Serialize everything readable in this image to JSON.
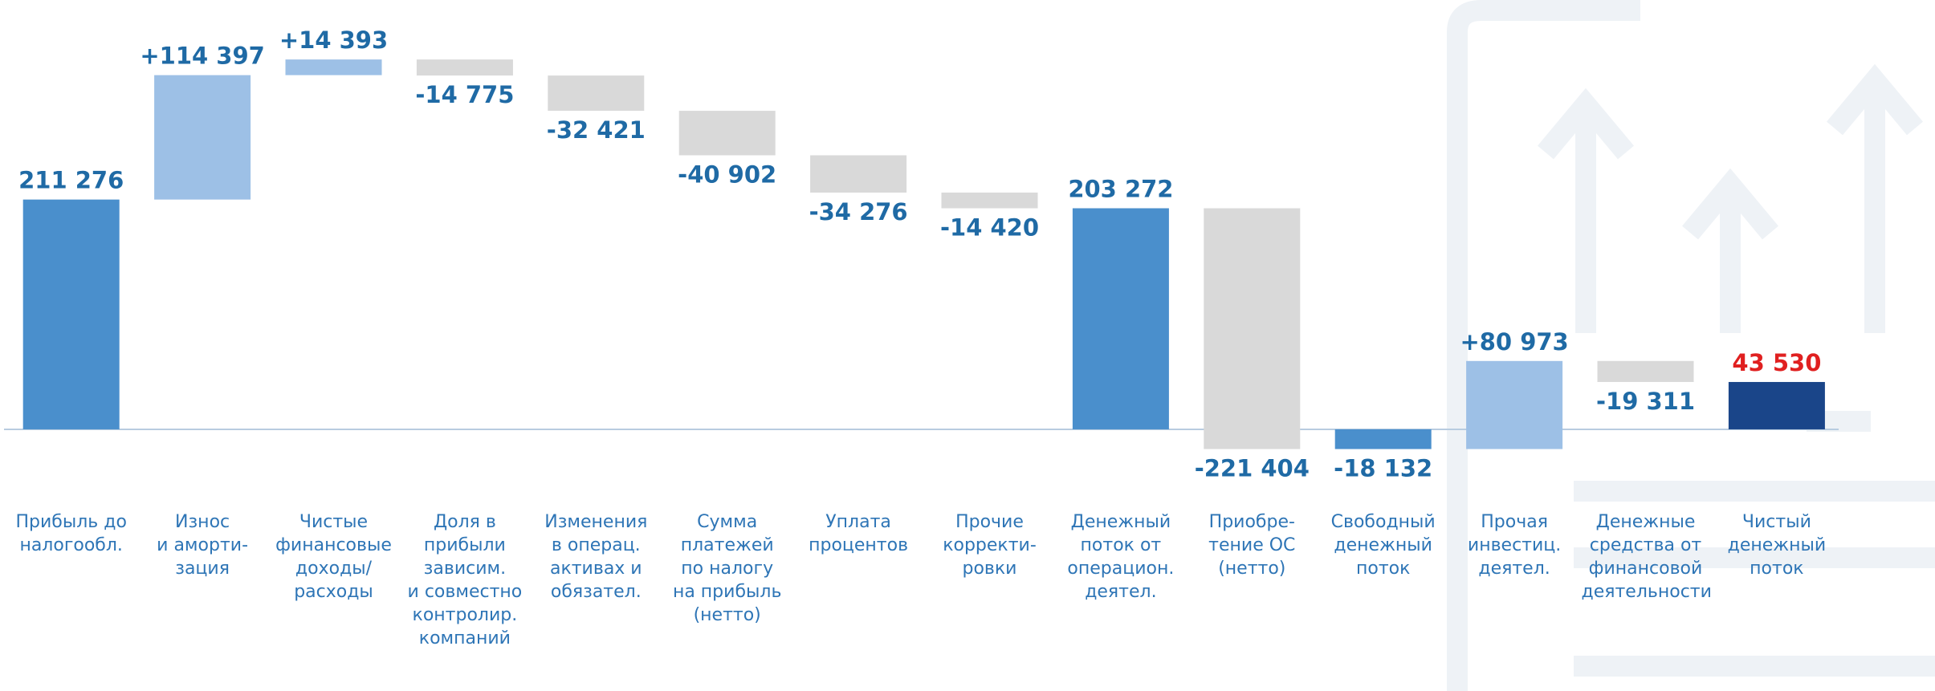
{
  "chart_data": {
    "type": "waterfall",
    "categories": [
      "Прибыль до\nналогообл.",
      "Износ\nи аморти-\nзация",
      "Чистые\nфинансовые\nдоходы/\nрасходы",
      "Доля в\nприбыли\nзависим.\nи совместно\nконтролир.\nкомпаний",
      "Изменения\nв операц.\nактивах и\nобязател.",
      "Сумма\nплатежей\nпо налогу\nна прибыль\n(нетто)",
      "Уплата\nпроцентов",
      "Прочие\nкорректи-\nровки",
      "Денежный\nпоток от\nоперацион.\nдеятел.",
      "Приобре-\nтение ОС\n(нетто)",
      "Свободный\nденежный\nпоток",
      "Прочая\nинвестиц.\nдеятел.",
      "Денежные\nсредства от\nфинансовой\nдеятельности",
      "Чистый\nденежный\nпоток"
    ],
    "values": [
      211276,
      114397,
      14393,
      -14775,
      -32421,
      -40902,
      -34276,
      -14420,
      203272,
      -221404,
      -18132,
      80973,
      -19311,
      43530
    ],
    "value_labels": [
      "211 276",
      "+114 397",
      "+14 393",
      "-14 775",
      "-32 421",
      "-40 902",
      "-34 276",
      "-14 420",
      "203 272",
      "-221 404",
      "-18 132",
      "+80 973",
      "-19 311",
      "43 530"
    ],
    "is_total": [
      true,
      false,
      false,
      false,
      false,
      false,
      false,
      false,
      true,
      false,
      true,
      false,
      false,
      true
    ],
    "colors": [
      "#4a8fcc",
      "#9dc0e6",
      "#9dc0e6",
      "#d9d9d9",
      "#d9d9d9",
      "#d9d9d9",
      "#d9d9d9",
      "#d9d9d9",
      "#4a8fcc",
      "#d9d9d9",
      "#4a8fcc",
      "#9dc0e6",
      "#d9d9d9",
      "#1a4589"
    ],
    "label_colors": [
      "#1f6aa5",
      "#1f6aa5",
      "#1f6aa5",
      "#1f6aa5",
      "#1f6aa5",
      "#1f6aa5",
      "#1f6aa5",
      "#1f6aa5",
      "#1f6aa5",
      "#1f6aa5",
      "#1f6aa5",
      "#1f6aa5",
      "#1f6aa5",
      "#e02020"
    ],
    "ylim": [
      -48000,
      380000
    ]
  }
}
